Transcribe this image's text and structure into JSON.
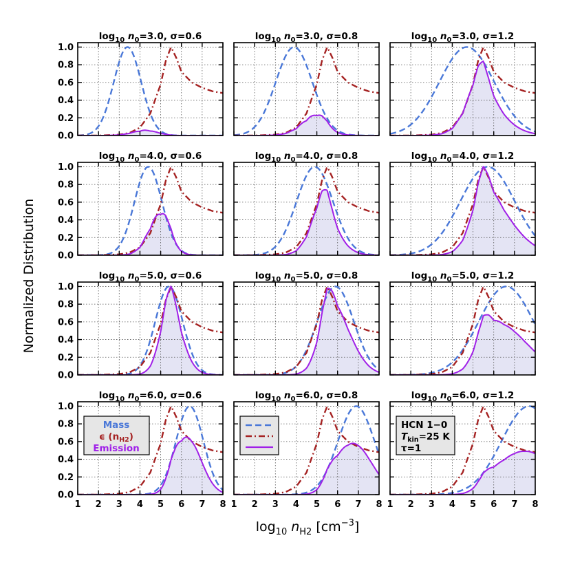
{
  "figure": {
    "ylabel": "Normalized Distribution",
    "xlabel_prefix": "log",
    "xlabel_sub": "10",
    "xlabel_var": "n",
    "xlabel_var_sub": "H2",
    "xlabel_unit": "[cm",
    "xlabel_unit_exp": "−3",
    "xlabel_unit_close": "]",
    "title_log": "log",
    "title_log_sub": "10",
    "title_n": "n",
    "title_n_sub": "0"
  },
  "colors": {
    "mass": "#4a78d8",
    "efficiency": "#a52222",
    "emission": "#a020e8",
    "emission_fill": "#e4e4f4",
    "grid": "#555555",
    "legend_bg": "#e6e6e6"
  },
  "legend": {
    "mass_label": "Mass",
    "eff_label_sym": "ϵ (n",
    "eff_label_sub": "H2",
    "eff_label_close": ")",
    "emission_label": "Emission"
  },
  "info_box": {
    "line1": "HCN 1−0",
    "line2_T": "T",
    "line2_sub": "kin",
    "line2_rest": "=25 K",
    "line3": "τ=1"
  },
  "chart_data": {
    "type": "line",
    "layout": "4x3 grid",
    "xlim": [
      1,
      8
    ],
    "ylim": [
      0,
      1.05
    ],
    "x_ticks": [
      "1",
      "2",
      "3",
      "4",
      "5",
      "6",
      "7",
      "8"
    ],
    "y_ticks": [
      "0.0",
      "0.2",
      "0.4",
      "0.6",
      "0.8",
      "1.0"
    ],
    "grid": true,
    "series_styles": {
      "mass": "dashed",
      "efficiency": "dash-dot",
      "emission": "solid with shaded fill"
    },
    "efficiency_curve": {
      "x": [
        1.0,
        2.0,
        3.0,
        3.5,
        4.0,
        4.5,
        5.0,
        5.25,
        5.5,
        5.75,
        6.0,
        6.5,
        7.0,
        7.5,
        8.0
      ],
      "y": [
        0.0,
        0.0,
        0.01,
        0.03,
        0.09,
        0.25,
        0.58,
        0.85,
        1.0,
        0.88,
        0.72,
        0.6,
        0.54,
        0.5,
        0.48
      ]
    },
    "panels": [
      {
        "row": 0,
        "col": 0,
        "log_n0": "3.0",
        "sigma": "0.6",
        "mass_peak_x": 3.4,
        "emission_peak_x": 4.2,
        "emission_peak_y": 0.06
      },
      {
        "row": 0,
        "col": 1,
        "log_n0": "3.0",
        "sigma": "0.8",
        "mass_peak_x": 3.9,
        "emission_peak_x": 4.8,
        "emission_peak_y": 0.23
      },
      {
        "row": 0,
        "col": 2,
        "log_n0": "3.0",
        "sigma": "1.2",
        "mass_peak_x": 4.7,
        "emission_peak_x": 5.3,
        "emission_peak_y": 0.84
      },
      {
        "row": 1,
        "col": 0,
        "log_n0": "4.0",
        "sigma": "0.6",
        "mass_peak_x": 4.4,
        "emission_peak_x": 4.9,
        "emission_peak_y": 0.47
      },
      {
        "row": 1,
        "col": 1,
        "log_n0": "4.0",
        "sigma": "0.8",
        "mass_peak_x": 4.9,
        "emission_peak_x": 5.2,
        "emission_peak_y": 0.74
      },
      {
        "row": 1,
        "col": 2,
        "log_n0": "4.0",
        "sigma": "1.2",
        "mass_peak_x": 5.7,
        "emission_peak_x": 5.5,
        "emission_peak_y": 1.0
      },
      {
        "row": 2,
        "col": 0,
        "log_n0": "5.0",
        "sigma": "0.6",
        "mass_peak_x": 5.4,
        "emission_peak_x": 5.4,
        "emission_peak_y": 1.0
      },
      {
        "row": 2,
        "col": 1,
        "log_n0": "5.0",
        "sigma": "0.8",
        "mass_peak_x": 5.9,
        "emission_peak_x": 5.5,
        "emission_peak_y": 0.98
      },
      {
        "row": 2,
        "col": 2,
        "log_n0": "5.0",
        "sigma": "1.2",
        "mass_peak_x": 6.6,
        "emission_peak_x": 5.8,
        "emission_peak_y": 0.68
      },
      {
        "row": 3,
        "col": 0,
        "log_n0": "6.0",
        "sigma": "0.6",
        "mass_peak_x": 6.4,
        "emission_peak_x": 6.2,
        "emission_peak_y": 0.65
      },
      {
        "row": 3,
        "col": 1,
        "log_n0": "6.0",
        "sigma": "0.8",
        "mass_peak_x": 6.9,
        "emission_peak_x": 6.5,
        "emission_peak_y": 0.58
      },
      {
        "row": 3,
        "col": 2,
        "log_n0": "6.0",
        "sigma": "1.2",
        "mass_peak_x": 7.7,
        "emission_peak_x": 7.6,
        "emission_peak_y": 0.49
      }
    ]
  }
}
